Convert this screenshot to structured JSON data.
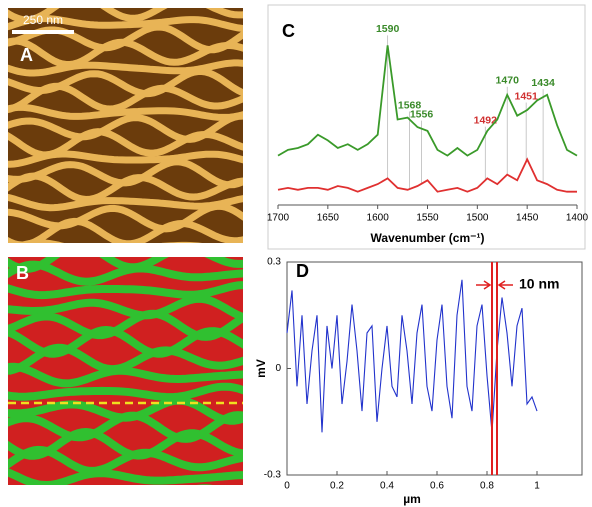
{
  "panels": [
    {
      "label": "A",
      "scale_bar": "250 nm"
    },
    {
      "label": "B"
    }
  ],
  "chart_data": [
    {
      "type": "line",
      "label": "C",
      "xlabel": "Wavenumber (cm⁻¹)",
      "xlim": [
        1700,
        1400
      ],
      "xticks": [
        1700,
        1650,
        1600,
        1550,
        1500,
        1450,
        1400
      ],
      "ylim": [
        0,
        100
      ],
      "x": [
        1700,
        1690,
        1680,
        1670,
        1660,
        1650,
        1640,
        1630,
        1620,
        1610,
        1600,
        1590,
        1580,
        1570,
        1560,
        1550,
        1540,
        1530,
        1520,
        1510,
        1500,
        1490,
        1480,
        1470,
        1460,
        1450,
        1440,
        1430,
        1420,
        1410,
        1400
      ],
      "series": [
        {
          "color": "#3a9a2a",
          "values": [
            26,
            29,
            30,
            32,
            37,
            34,
            30,
            32,
            29,
            32,
            37,
            84,
            45,
            46,
            41,
            39,
            29,
            26,
            30,
            26,
            29,
            39,
            45,
            58,
            47,
            50,
            55,
            58,
            42,
            29,
            26
          ]
        },
        {
          "color": "#e03030",
          "values": [
            8,
            9,
            8,
            9,
            9,
            8,
            10,
            9,
            7,
            9,
            11,
            14,
            9,
            8,
            10,
            13,
            7,
            8,
            9,
            7,
            9,
            14,
            11,
            16,
            13,
            24,
            13,
            11,
            8,
            7,
            7
          ]
        }
      ],
      "annotations": [
        {
          "text": "1590",
          "x": 1590,
          "color": "#3a8a2a"
        },
        {
          "text": "1568",
          "x": 1568,
          "color": "#3a8a2a"
        },
        {
          "text": "1556",
          "x": 1556,
          "color": "#3a8a2a"
        },
        {
          "text": "1492",
          "x": 1492,
          "color": "#d03030"
        },
        {
          "text": "1470",
          "x": 1470,
          "color": "#3a8a2a"
        },
        {
          "text": "1451",
          "x": 1451,
          "color": "#d03030"
        },
        {
          "text": "1434",
          "x": 1434,
          "color": "#3a8a2a"
        }
      ]
    },
    {
      "type": "line",
      "label": "D",
      "xlabel": "µm",
      "ylabel": "mV",
      "xlim": [
        0,
        1
      ],
      "xticks": [
        0,
        0.2,
        0.4,
        0.6,
        0.8,
        1
      ],
      "ylim": [
        -0.3,
        0.3
      ],
      "yticks": [
        -0.3,
        0,
        0.3
      ],
      "x": [
        0,
        0.02,
        0.04,
        0.06,
        0.08,
        0.1,
        0.12,
        0.14,
        0.16,
        0.18,
        0.2,
        0.22,
        0.24,
        0.26,
        0.28,
        0.3,
        0.32,
        0.34,
        0.36,
        0.38,
        0.4,
        0.42,
        0.44,
        0.46,
        0.48,
        0.5,
        0.52,
        0.54,
        0.56,
        0.58,
        0.6,
        0.62,
        0.64,
        0.66,
        0.68,
        0.7,
        0.72,
        0.74,
        0.76,
        0.78,
        0.8,
        0.82,
        0.84,
        0.86,
        0.88,
        0.9,
        0.92,
        0.94,
        0.96,
        0.98,
        1
      ],
      "series": [
        {
          "color": "#2233cc",
          "values": [
            0.1,
            0.22,
            -0.05,
            0.15,
            -0.1,
            0.05,
            0.15,
            -0.18,
            0.12,
            0,
            0.15,
            -0.1,
            0.02,
            0.18,
            0.05,
            -0.12,
            0.1,
            0.12,
            -0.15,
            0,
            0.12,
            -0.05,
            -0.08,
            0.15,
            0.05,
            -0.1,
            0.1,
            0.18,
            -0.05,
            -0.12,
            0.08,
            0.18,
            -0.05,
            -0.14,
            0.15,
            0.25,
            -0.05,
            -0.12,
            0.12,
            0.18,
            -0.02,
            -0.18,
            0.05,
            0.2,
            0.1,
            -0.05,
            0.12,
            0.17,
            -0.1,
            -0.08,
            -0.12
          ]
        }
      ],
      "annotation": {
        "text": "10 nm",
        "x": [
          0.82,
          0.84
        ],
        "color": "#e02020"
      }
    }
  ]
}
